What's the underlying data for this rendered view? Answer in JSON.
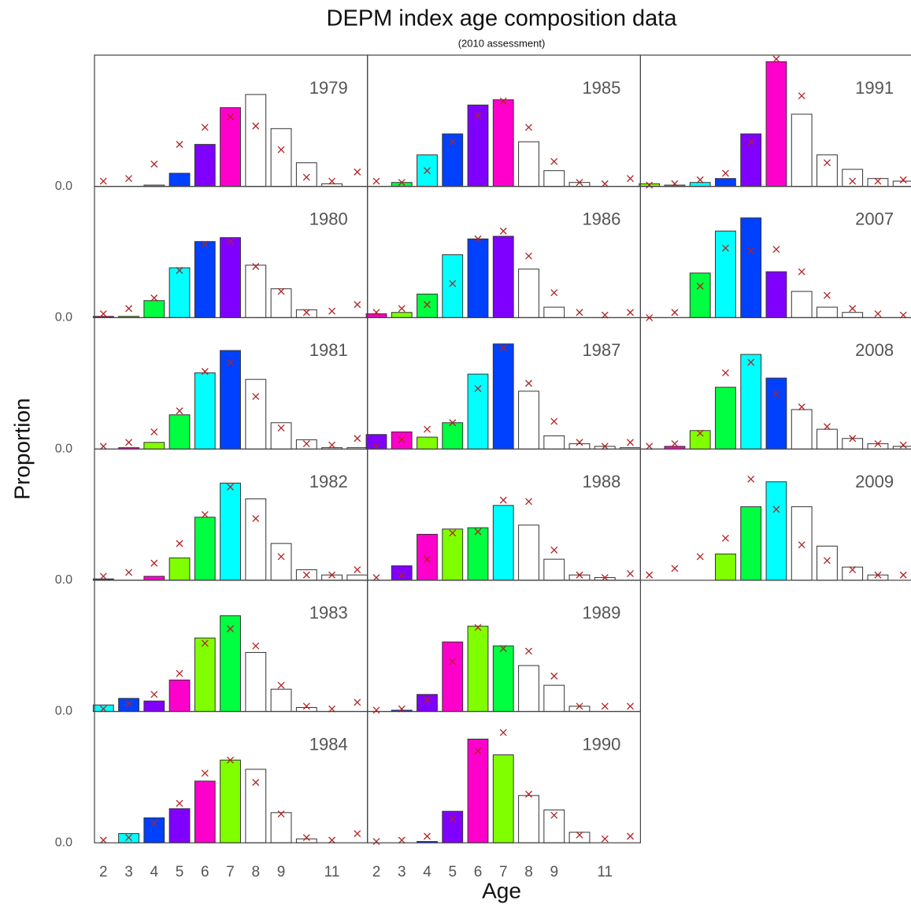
{
  "chart_data": {
    "type": "bar",
    "title": "DEPM index age composition data",
    "subtitle": "(2010 assessment)",
    "xlabel": "Age",
    "ylabel": "Proportion",
    "ages": [
      2,
      3,
      4,
      5,
      6,
      7,
      8,
      9,
      10,
      11,
      12
    ],
    "xlim": [
      1.65,
      12.4
    ],
    "xticks": [
      2,
      3,
      4,
      5,
      6,
      7,
      8,
      9,
      11
    ],
    "ylim": [
      0,
      0.5
    ],
    "yticks": [
      {
        "value": 0,
        "label": "0.0"
      }
    ],
    "grid": false,
    "expected_color": "#b22222",
    "bar_stroke": "#333333",
    "panels": [
      {
        "year": "1979",
        "values": [
          0,
          0,
          0.005,
          0.05,
          0.16,
          0.3,
          0.35,
          0.22,
          0.09,
          0.01,
          0
        ],
        "expected": [
          0.02,
          0.03,
          0.085,
          0.16,
          0.225,
          0.265,
          0.23,
          0.14,
          0.035,
          0.02,
          0.055
        ],
        "colors": [
          "#80ff00",
          "#00ff40",
          "#00ffff",
          "#0040ff",
          "#8000ff",
          "#ff00cc",
          "#ffffff",
          "#ffffff",
          "#ffffff",
          "#ffffff",
          "#ffffff"
        ]
      },
      {
        "year": "1980",
        "values": [
          0.005,
          0.005,
          0.065,
          0.19,
          0.29,
          0.305,
          0.2,
          0.11,
          0.03,
          0,
          0
        ],
        "expected": [
          0.015,
          0.035,
          0.075,
          0.18,
          0.28,
          0.29,
          0.195,
          0.1,
          0.02,
          0.025,
          0.05
        ],
        "colors": [
          "#ff00cc",
          "#80ff00",
          "#00ff40",
          "#00ffff",
          "#0040ff",
          "#8000ff",
          "#ffffff",
          "#ffffff",
          "#ffffff",
          "#ffffff",
          "#ffffff"
        ]
      },
      {
        "year": "1981",
        "values": [
          0,
          0.005,
          0.025,
          0.13,
          0.29,
          0.375,
          0.265,
          0.1,
          0.035,
          0.005,
          0.005
        ],
        "expected": [
          0.01,
          0.025,
          0.065,
          0.145,
          0.295,
          0.33,
          0.2,
          0.08,
          0.02,
          0.015,
          0.04
        ],
        "colors": [
          "#8000ff",
          "#ff00cc",
          "#80ff00",
          "#00ff40",
          "#00ffff",
          "#0040ff",
          "#ffffff",
          "#ffffff",
          "#ffffff",
          "#ffffff",
          "#ffffff"
        ]
      },
      {
        "year": "1982",
        "values": [
          0.005,
          0,
          0.015,
          0.085,
          0.24,
          0.37,
          0.31,
          0.14,
          0.04,
          0.02,
          0.02
        ],
        "expected": [
          0.015,
          0.03,
          0.065,
          0.14,
          0.25,
          0.355,
          0.235,
          0.09,
          0.02,
          0.02,
          0.04
        ],
        "colors": [
          "#0040ff",
          "#8000ff",
          "#ff00cc",
          "#80ff00",
          "#00ff40",
          "#00ffff",
          "#ffffff",
          "#ffffff",
          "#ffffff",
          "#ffffff",
          "#ffffff"
        ]
      },
      {
        "year": "1983",
        "values": [
          0.025,
          0.05,
          0.04,
          0.12,
          0.28,
          0.365,
          0.225,
          0.085,
          0.015,
          0,
          0
        ],
        "expected": [
          0.01,
          0.03,
          0.065,
          0.145,
          0.26,
          0.315,
          0.25,
          0.1,
          0.02,
          0.01,
          0.035
        ],
        "colors": [
          "#00ffff",
          "#0040ff",
          "#8000ff",
          "#ff00cc",
          "#80ff00",
          "#00ff40",
          "#ffffff",
          "#ffffff",
          "#ffffff",
          "#ffffff",
          "#ffffff"
        ]
      },
      {
        "year": "1984",
        "values": [
          0,
          0.035,
          0.095,
          0.13,
          0.235,
          0.315,
          0.28,
          0.115,
          0.015,
          0,
          0
        ],
        "expected": [
          0.01,
          0.02,
          0.075,
          0.15,
          0.265,
          0.315,
          0.23,
          0.11,
          0.02,
          0.01,
          0.035
        ],
        "colors": [
          "#00ff40",
          "#00ffff",
          "#0040ff",
          "#8000ff",
          "#ff00cc",
          "#80ff00",
          "#ffffff",
          "#ffffff",
          "#ffffff",
          "#ffffff",
          "#ffffff"
        ]
      },
      {
        "year": "1985",
        "values": [
          0,
          0.015,
          0.12,
          0.2,
          0.31,
          0.33,
          0.17,
          0.06,
          0.015,
          0,
          0
        ],
        "expected": [
          0.02,
          0.015,
          0.06,
          0.17,
          0.27,
          0.325,
          0.225,
          0.095,
          0.015,
          0.01,
          0.03
        ],
        "colors": [
          "#80ff00",
          "#00ff40",
          "#00ffff",
          "#0040ff",
          "#8000ff",
          "#ff00cc",
          "#ffffff",
          "#ffffff",
          "#ffffff",
          "#ffffff",
          "#ffffff"
        ]
      },
      {
        "year": "1986",
        "values": [
          0.015,
          0.02,
          0.09,
          0.24,
          0.3,
          0.31,
          0.185,
          0.04,
          0,
          0,
          0
        ],
        "expected": [
          0.02,
          0.035,
          0.05,
          0.13,
          0.3,
          0.33,
          0.235,
          0.095,
          0.02,
          0.01,
          0.02
        ],
        "colors": [
          "#ff00cc",
          "#80ff00",
          "#00ff40",
          "#00ffff",
          "#0040ff",
          "#8000ff",
          "#ffffff",
          "#ffffff",
          "#ffffff",
          "#ffffff",
          "#ffffff"
        ]
      },
      {
        "year": "1987",
        "values": [
          0.055,
          0.065,
          0.045,
          0.1,
          0.285,
          0.4,
          0.22,
          0.05,
          0.02,
          0.01,
          0.005
        ],
        "expected": [
          0.01,
          0.035,
          0.075,
          0.1,
          0.23,
          0.385,
          0.25,
          0.105,
          0.025,
          0.01,
          0.025
        ],
        "colors": [
          "#8000ff",
          "#ff00cc",
          "#80ff00",
          "#00ff40",
          "#00ffff",
          "#0040ff",
          "#ffffff",
          "#ffffff",
          "#ffffff",
          "#ffffff",
          "#ffffff"
        ]
      },
      {
        "year": "1988",
        "values": [
          0,
          0.055,
          0.175,
          0.195,
          0.2,
          0.285,
          0.21,
          0.08,
          0.02,
          0.01,
          0
        ],
        "expected": [
          0.01,
          0.02,
          0.08,
          0.18,
          0.185,
          0.305,
          0.3,
          0.115,
          0.02,
          0.01,
          0.025
        ],
        "colors": [
          "#0040ff",
          "#8000ff",
          "#ff00cc",
          "#80ff00",
          "#00ff40",
          "#00ffff",
          "#ffffff",
          "#ffffff",
          "#ffffff",
          "#ffffff",
          "#ffffff"
        ]
      },
      {
        "year": "1989",
        "values": [
          0,
          0.005,
          0.065,
          0.265,
          0.325,
          0.25,
          0.175,
          0.1,
          0.02,
          0,
          0
        ],
        "expected": [
          0.005,
          0.01,
          0.045,
          0.19,
          0.32,
          0.24,
          0.23,
          0.135,
          0.02,
          0.02,
          0.02
        ],
        "colors": [
          "#00ffff",
          "#0040ff",
          "#8000ff",
          "#ff00cc",
          "#80ff00",
          "#00ff40",
          "#ffffff",
          "#ffffff",
          "#ffffff",
          "#ffffff",
          "#ffffff"
        ]
      },
      {
        "year": "1990",
        "values": [
          0,
          0,
          0.005,
          0.12,
          0.395,
          0.335,
          0.18,
          0.125,
          0.04,
          0,
          0
        ],
        "expected": [
          0.005,
          0.01,
          0.025,
          0.09,
          0.35,
          0.42,
          0.185,
          0.105,
          0.03,
          0.015,
          0.025
        ],
        "colors": [
          "#00ff40",
          "#00ffff",
          "#0040ff",
          "#8000ff",
          "#ff00cc",
          "#80ff00",
          "#ffffff",
          "#ffffff",
          "#ffffff",
          "#ffffff",
          "#ffffff"
        ]
      },
      {
        "year": "1991",
        "values": [
          0.01,
          0.005,
          0.015,
          0.03,
          0.2,
          0.475,
          0.275,
          0.12,
          0.065,
          0.03,
          0.02
        ],
        "expected": [
          0.005,
          0.01,
          0.025,
          0.05,
          0.17,
          0.485,
          0.345,
          0.09,
          0.02,
          0.02,
          0.025
        ],
        "colors": [
          "#80ff00",
          "#00ff40",
          "#00ffff",
          "#0040ff",
          "#8000ff",
          "#ff00cc",
          "#ffffff",
          "#ffffff",
          "#ffffff",
          "#ffffff",
          "#ffffff"
        ]
      },
      {
        "year": "2007",
        "values": [
          0,
          0,
          0.17,
          0.33,
          0.38,
          0.175,
          0.1,
          0.04,
          0.02,
          0,
          0
        ],
        "expected": [
          0,
          0.02,
          0.12,
          0.265,
          0.255,
          0.26,
          0.175,
          0.085,
          0.035,
          0.015,
          0.01
        ],
        "colors": [
          "#ff00cc",
          "#80ff00",
          "#00ff40",
          "#00ffff",
          "#0040ff",
          "#8000ff",
          "#ffffff",
          "#ffffff",
          "#ffffff",
          "#ffffff",
          "#ffffff"
        ]
      },
      {
        "year": "2008",
        "values": [
          0,
          0.01,
          0.07,
          0.235,
          0.36,
          0.27,
          0.15,
          0.075,
          0.04,
          0.02,
          0.01
        ],
        "expected": [
          0.01,
          0.02,
          0.06,
          0.29,
          0.33,
          0.21,
          0.16,
          0.085,
          0.04,
          0.02,
          0.015
        ],
        "colors": [
          "#8000ff",
          "#ff00cc",
          "#80ff00",
          "#00ff40",
          "#00ffff",
          "#0040ff",
          "#ffffff",
          "#ffffff",
          "#ffffff",
          "#ffffff",
          "#ffffff"
        ]
      },
      {
        "year": "2009",
        "values": [
          0,
          0,
          0,
          0.1,
          0.28,
          0.375,
          0.28,
          0.13,
          0.05,
          0.02,
          0
        ],
        "expected": [
          0.02,
          0.045,
          0.09,
          0.16,
          0.385,
          0.27,
          0.135,
          0.075,
          0.04,
          0.02,
          0.02
        ],
        "colors": [
          "#0040ff",
          "#8000ff",
          "#ff00cc",
          "#80ff00",
          "#00ff40",
          "#00ffff",
          "#ffffff",
          "#ffffff",
          "#ffffff",
          "#ffffff",
          "#ffffff"
        ]
      }
    ]
  }
}
